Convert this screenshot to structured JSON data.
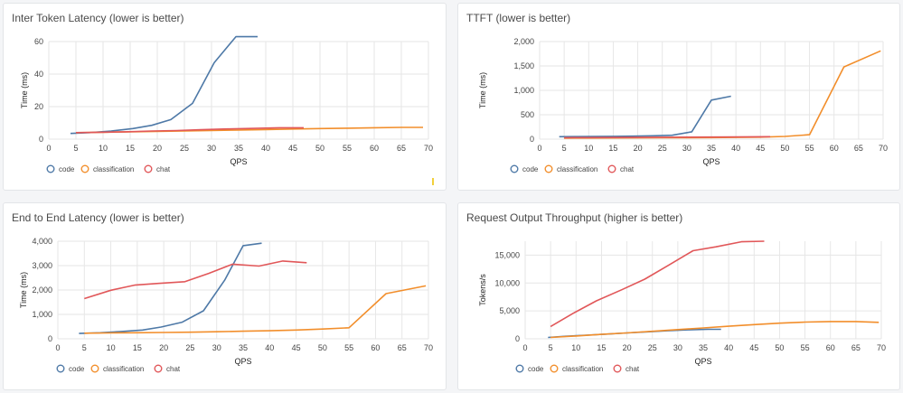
{
  "colors": {
    "code": "#4e79a7",
    "classification": "#f28e2b",
    "chat": "#e15759",
    "grid": "#e6e6e6"
  },
  "legend": [
    "code",
    "classification",
    "chat"
  ],
  "chart_data": [
    {
      "type": "line",
      "title": "Inter Token Latency (lower is better)",
      "xlabel": "QPS",
      "ylabel": "Time (ms)",
      "xlim": [
        0,
        70
      ],
      "ylim": [
        0,
        60
      ],
      "xticks": [
        "0",
        "5",
        "10",
        "15",
        "20",
        "25",
        "30",
        "35",
        "40",
        "45",
        "50",
        "55",
        "60",
        "65",
        "70"
      ],
      "yticks": [
        "0",
        "20",
        "40",
        "60"
      ],
      "grid": true,
      "legend_position": "bottom-left",
      "series": [
        {
          "name": "code",
          "x": [
            4,
            7.5,
            11.5,
            15.5,
            19,
            22.5,
            26.5,
            30.5,
            34.5,
            38.5
          ],
          "y": [
            3.5,
            4,
            5,
            6.5,
            8.5,
            12,
            22,
            47,
            63,
            63
          ]
        },
        {
          "name": "classification",
          "x": [
            5,
            10,
            15,
            20,
            25,
            30,
            35,
            40,
            45,
            50,
            55,
            60,
            65,
            69
          ],
          "y": [
            4,
            4.2,
            4.5,
            4.8,
            5,
            5.3,
            5.6,
            5.9,
            6.2,
            6.5,
            6.7,
            7,
            7.2,
            7.2
          ]
        },
        {
          "name": "chat",
          "x": [
            5,
            9.5,
            14,
            19,
            23.5,
            28,
            33,
            38,
            42.5,
            47
          ],
          "y": [
            4,
            4.2,
            4.5,
            5,
            5.3,
            5.8,
            6.3,
            6.6,
            7,
            7
          ]
        }
      ]
    },
    {
      "type": "line",
      "title": "TTFT (lower is better)",
      "xlabel": "QPS",
      "ylabel": "Time (ms)",
      "xlim": [
        0,
        70
      ],
      "ylim": [
        0,
        2000
      ],
      "xticks": [
        "0",
        "5",
        "10",
        "15",
        "20",
        "25",
        "30",
        "35",
        "40",
        "45",
        "50",
        "55",
        "60",
        "65",
        "70"
      ],
      "yticks": [
        "0",
        "500",
        "1,000",
        "1,500",
        "2,000"
      ],
      "grid": true,
      "legend_position": "bottom-left",
      "series": [
        {
          "name": "code",
          "x": [
            4,
            7.5,
            11.5,
            15.5,
            19,
            23,
            27,
            31,
            35,
            39
          ],
          "y": [
            50,
            52,
            55,
            58,
            62,
            68,
            80,
            150,
            800,
            880
          ]
        },
        {
          "name": "classification",
          "x": [
            5,
            10,
            15,
            20,
            25,
            30,
            35,
            40,
            45,
            50,
            55,
            62,
            69.5
          ],
          "y": [
            20,
            22,
            24,
            26,
            28,
            30,
            32,
            35,
            40,
            55,
            90,
            1480,
            1810
          ]
        },
        {
          "name": "chat",
          "x": [
            5,
            10,
            15,
            20,
            25,
            30,
            35,
            40,
            47
          ],
          "y": [
            30,
            32,
            34,
            36,
            38,
            40,
            42,
            45,
            50
          ]
        }
      ]
    },
    {
      "type": "line",
      "title": "End to End Latency (lower is better)",
      "xlabel": "QPS",
      "ylabel": "Time (ms)",
      "xlim": [
        0,
        70
      ],
      "ylim": [
        0,
        4000
      ],
      "xticks": [
        "0",
        "5",
        "10",
        "15",
        "20",
        "25",
        "30",
        "35",
        "40",
        "45",
        "50",
        "55",
        "60",
        "65",
        "70"
      ],
      "yticks": [
        "0",
        "1,000",
        "2,000",
        "3,000",
        "4,000"
      ],
      "grid": true,
      "legend_position": "bottom-left",
      "series": [
        {
          "name": "code",
          "x": [
            4,
            8,
            12,
            16,
            19.5,
            23.5,
            27.5,
            31.5,
            35,
            38.5
          ],
          "y": [
            220,
            250,
            300,
            360,
            480,
            680,
            1150,
            2400,
            3820,
            3920
          ]
        },
        {
          "name": "classification",
          "x": [
            5,
            10,
            15,
            20,
            25,
            30,
            35,
            40,
            45,
            50,
            55,
            62,
            69.5
          ],
          "y": [
            230,
            240,
            250,
            260,
            270,
            290,
            310,
            330,
            360,
            400,
            450,
            1850,
            2170
          ]
        },
        {
          "name": "chat",
          "x": [
            5,
            10,
            14.5,
            19,
            24,
            28.5,
            33,
            38,
            42.5,
            47
          ],
          "y": [
            1650,
            1990,
            2200,
            2270,
            2340,
            2680,
            3060,
            2980,
            3190,
            3120
          ]
        }
      ]
    },
    {
      "type": "line",
      "title": "Request Output Throughput (higher is better)",
      "xlabel": "QPS",
      "ylabel": "Tokens/s",
      "xlim": [
        0,
        70
      ],
      "ylim": [
        0,
        17500
      ],
      "xticks": [
        "0",
        "5",
        "10",
        "15",
        "20",
        "25",
        "30",
        "35",
        "40",
        "45",
        "50",
        "55",
        "60",
        "65",
        "70"
      ],
      "yticks": [
        "0",
        "5,000",
        "10,000",
        "15,000"
      ],
      "grid": true,
      "legend_position": "bottom-left",
      "series": [
        {
          "name": "code",
          "x": [
            4.5,
            8,
            12,
            16,
            20,
            24,
            28,
            32,
            36,
            38.5
          ],
          "y": [
            250,
            450,
            650,
            850,
            1050,
            1250,
            1450,
            1600,
            1700,
            1700
          ]
        },
        {
          "name": "classification",
          "x": [
            5,
            10,
            15,
            20,
            25,
            30,
            35,
            40,
            45,
            50,
            55,
            60,
            65,
            69.5
          ],
          "y": [
            250,
            500,
            800,
            1050,
            1350,
            1650,
            1950,
            2250,
            2550,
            2800,
            3000,
            3100,
            3100,
            2950
          ]
        },
        {
          "name": "chat",
          "x": [
            5,
            9.5,
            14,
            19,
            23.5,
            28,
            33,
            37.5,
            42.5,
            47
          ],
          "y": [
            2200,
            4600,
            6800,
            8800,
            10700,
            13100,
            15800,
            16500,
            17400,
            17500
          ]
        }
      ]
    }
  ]
}
